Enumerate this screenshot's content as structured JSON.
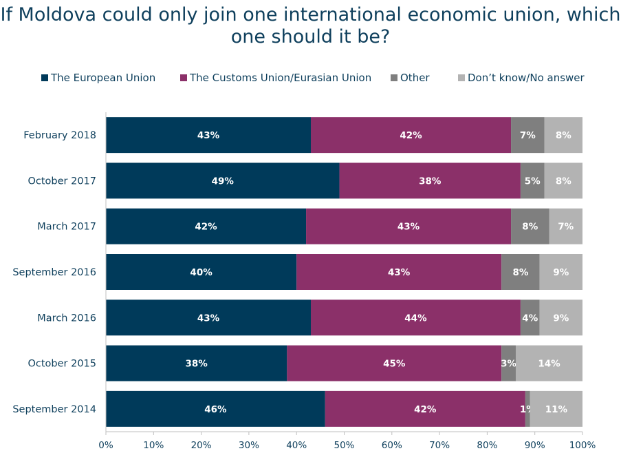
{
  "title_line1": "If Moldova could only join one international economic union, which",
  "title_line2": "one should it be?",
  "colors": {
    "eu": "#003a5a",
    "cu": "#8b3069",
    "other": "#7f7f7f",
    "dk": "#b3b3b3",
    "text": "#0e3f5c"
  },
  "chart_data": {
    "type": "bar",
    "orientation": "horizontal",
    "stacked": true,
    "title": "If Moldova could only join one international economic union, which one should it be?",
    "categories": [
      "February 2018",
      "October 2017",
      "March 2017",
      "September 2016",
      "March 2016",
      "October 2015",
      "September 2014"
    ],
    "series": [
      {
        "name": "The European Union",
        "values": [
          43,
          49,
          42,
          40,
          43,
          38,
          46
        ]
      },
      {
        "name": "The Customs Union/Eurasian Union",
        "values": [
          42,
          38,
          43,
          43,
          44,
          45,
          42
        ]
      },
      {
        "name": "Other",
        "values": [
          7,
          5,
          8,
          8,
          4,
          3,
          1
        ]
      },
      {
        "name": "Don’t know/No answer",
        "values": [
          8,
          8,
          7,
          9,
          9,
          14,
          11
        ]
      }
    ],
    "xlim": [
      0,
      100
    ],
    "xticks": [
      "0%",
      "10%",
      "20%",
      "30%",
      "40%",
      "50%",
      "60%",
      "70%",
      "80%",
      "90%",
      "100%"
    ],
    "legend": "top",
    "grid": false
  }
}
